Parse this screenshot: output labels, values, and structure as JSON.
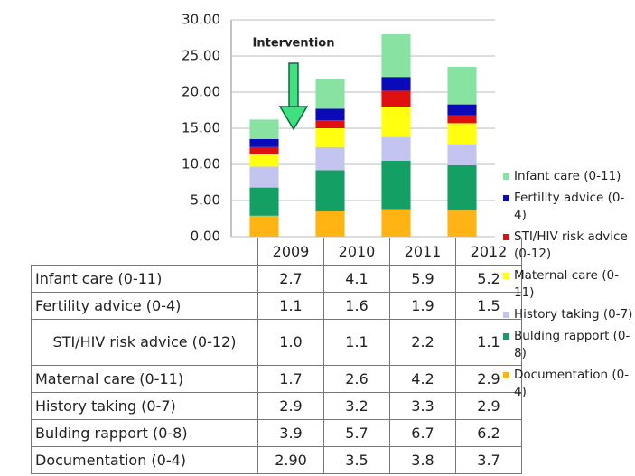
{
  "chart_data": {
    "type": "stacked_bar",
    "categories": [
      "2009",
      "2010",
      "2011",
      "2012"
    ],
    "ylim": [
      0,
      30
    ],
    "yticks": [
      {
        "value": 0,
        "label": "0.00"
      },
      {
        "value": 5,
        "label": "5.00"
      },
      {
        "value": 10,
        "label": "10.00"
      },
      {
        "value": 15,
        "label": "15.00"
      },
      {
        "value": 20,
        "label": "20.00"
      },
      {
        "value": 25,
        "label": "25.00"
      },
      {
        "value": 30,
        "label": "30.00"
      }
    ],
    "grid": true,
    "legend": "right",
    "annotation": "Intervention",
    "series": [
      {
        "name": "Infant care (0-11)",
        "color": "#88e2a2",
        "values": [
          2.7,
          4.1,
          5.9,
          5.2
        ],
        "value_labels": [
          "2.7",
          "4.1",
          "5.9",
          "5.2"
        ]
      },
      {
        "name": "Fertility advice (0-4)",
        "color": "#0a0ab8",
        "values": [
          1.1,
          1.6,
          1.9,
          1.5
        ],
        "value_labels": [
          "1.1",
          "1.6",
          "1.9",
          "1.5"
        ]
      },
      {
        "name": "STI/HIV risk advice (0-12)",
        "color": "#e01010",
        "values": [
          1.0,
          1.1,
          2.2,
          1.1
        ],
        "value_labels": [
          "1.0",
          "1.1",
          "2.2",
          "1.1"
        ]
      },
      {
        "name": "Maternal care (0-11)",
        "color": "#ffff10",
        "values": [
          1.7,
          2.6,
          4.2,
          2.9
        ],
        "value_labels": [
          "1.7",
          "2.6",
          "4.2",
          "2.9"
        ]
      },
      {
        "name": "History taking (0-7)",
        "color": "#c4c4f0",
        "values": [
          2.9,
          3.2,
          3.3,
          2.9
        ],
        "value_labels": [
          "2.9",
          "3.2",
          "3.3",
          "2.9"
        ]
      },
      {
        "name": "Bulding rapport (0-8)",
        "color": "#14a064",
        "values": [
          3.9,
          5.7,
          6.7,
          6.2
        ],
        "value_labels": [
          "3.9",
          "5.7",
          "6.7",
          "6.2"
        ]
      },
      {
        "name": "Documentation (0-4)",
        "color": "#ffb414",
        "values": [
          2.9,
          3.5,
          3.8,
          3.7
        ],
        "value_labels": [
          "2.90",
          "3.5",
          "3.8",
          "3.7"
        ]
      }
    ]
  }
}
